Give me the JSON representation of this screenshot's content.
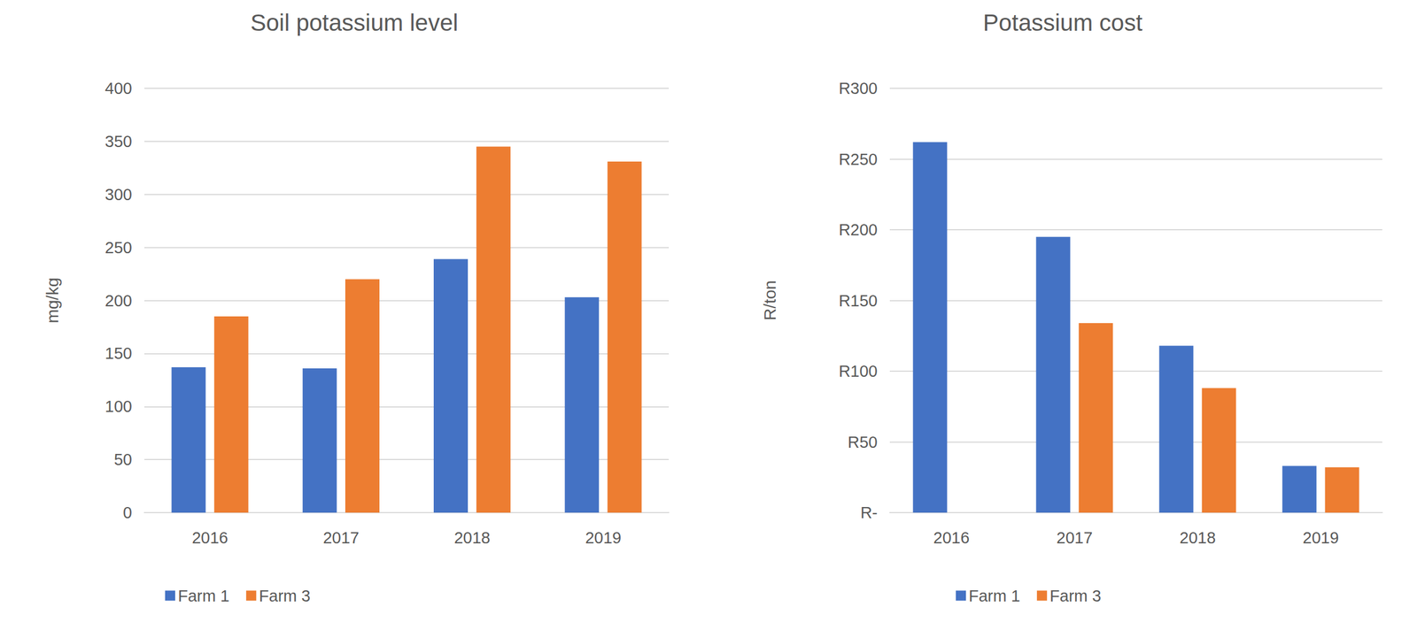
{
  "chart_data": [
    {
      "type": "bar",
      "title": "Soil potassium level",
      "ylabel": "mg/kg",
      "categories": [
        "2016",
        "2017",
        "2018",
        "2019"
      ],
      "series": [
        {
          "name": "Farm 1",
          "color": "#4472c4",
          "values": [
            137,
            136,
            239,
            203
          ]
        },
        {
          "name": "Farm 3",
          "color": "#ed7d31",
          "values": [
            185,
            220,
            345,
            331
          ]
        }
      ],
      "ylim": [
        0,
        400
      ],
      "yticks": [
        0,
        50,
        100,
        150,
        200,
        250,
        300,
        350,
        400
      ],
      "grid": true,
      "legend": "bottom"
    },
    {
      "type": "bar",
      "title": "Potassium cost",
      "ylabel": "R/ton",
      "categories": [
        "2016",
        "2017",
        "2018",
        "2019"
      ],
      "series": [
        {
          "name": "Farm 1",
          "color": "#4472c4",
          "values": [
            262,
            195,
            118,
            33
          ]
        },
        {
          "name": "Farm 3",
          "color": "#ed7d31",
          "values": [
            null,
            134,
            88,
            32
          ]
        }
      ],
      "ylim": [
        0,
        300
      ],
      "yticks": [
        {
          "value": 0,
          "label": "R-"
        },
        {
          "value": 50,
          "label": "R50"
        },
        {
          "value": 100,
          "label": "R100"
        },
        {
          "value": 150,
          "label": "R150"
        },
        {
          "value": 200,
          "label": "R200"
        },
        {
          "value": 250,
          "label": "R250"
        },
        {
          "value": 300,
          "label": "R300"
        }
      ],
      "grid": true,
      "legend": "bottom"
    }
  ]
}
